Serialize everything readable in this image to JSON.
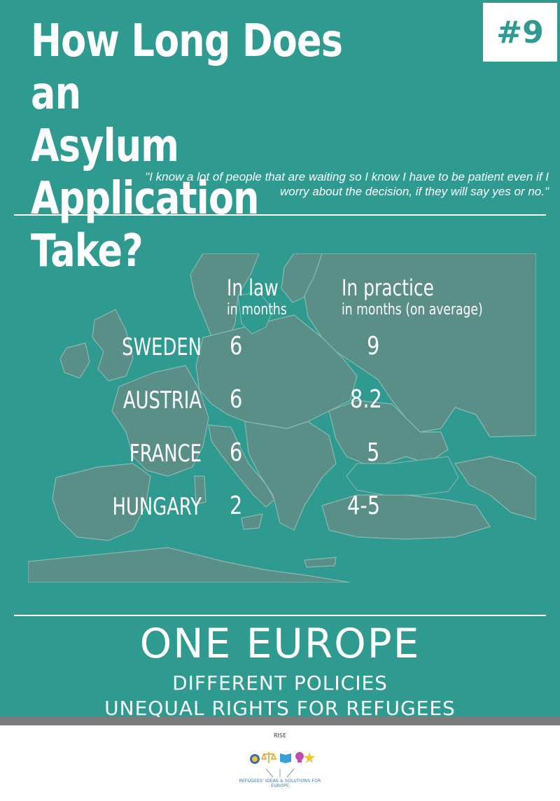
{
  "title": {
    "line1": "How Long Does an",
    "line2": "Asylum Application",
    "line3": "Take?"
  },
  "badge": "#9",
  "quote": "\"I know a lot of people that are waiting so I know I have to  be patient even if I worry about the decision, if they will say yes or no.\"",
  "table": {
    "col_law": {
      "heading": "In law",
      "sub": "in months"
    },
    "col_practice": {
      "heading": "In practice",
      "sub": "in months (on average)"
    },
    "rows": [
      {
        "country": "SWEDEN",
        "law": "6",
        "practice": "9"
      },
      {
        "country": "AUSTRIA",
        "law": "6",
        "practice": "8.2"
      },
      {
        "country": "FRANCE",
        "law": "6",
        "practice": "5"
      },
      {
        "country": "HUNGARY",
        "law": "2",
        "practice": "4-5"
      }
    ]
  },
  "footer": {
    "headline": "ONE EUROPE",
    "line1": "DIFFERENT POLICIES",
    "line2": "UNEQUAL RIGHTS FOR REFUGEES"
  },
  "logo": {
    "name": "RISE",
    "tagline": "REFUGEES' IDEAS & SOLUTIONS FOR EUROPE"
  },
  "colors": {
    "background": "#2e9a90",
    "map": "#5a8f88",
    "accent_grey": "#7a7a7a",
    "text": "#ffffff"
  },
  "icons": [
    "europe-map",
    "scales-icon",
    "book-icon",
    "lightbulb-icon",
    "star-icon",
    "eu-stars-icon"
  ]
}
